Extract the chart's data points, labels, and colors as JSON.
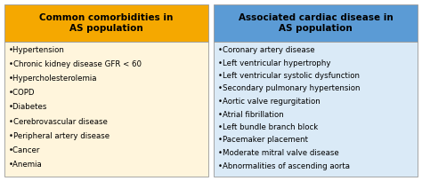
{
  "left_title": "Common comorbidities in\nAS population",
  "right_title": "Associated cardiac disease in\nAS population",
  "left_items": [
    "•Hypertension",
    "•Chronic kidney disease GFR < 60",
    "•Hypercholesterolemia",
    "•COPD",
    "•Diabetes",
    "•Cerebrovascular disease",
    "•Peripheral artery disease",
    "•Cancer",
    "•Anemia"
  ],
  "right_items": [
    "•Coronary artery disease",
    "•Left ventricular hypertrophy",
    "•Left ventricular systolic dysfunction",
    "•Secondary pulmonary hypertension",
    "•Aortic valve regurgitation",
    "•Atrial fibrillation",
    "•Left bundle branch block",
    "•Pacemaker placement",
    "•Moderate mitral valve disease",
    "•Abnormalities of ascending aorta"
  ],
  "left_header_bg": "#F5A800",
  "right_header_bg": "#5B9BD5",
  "left_body_bg": "#FFF5DC",
  "right_body_bg": "#DAEAF7",
  "header_text_color": "#000000",
  "body_text_color": "#000000",
  "border_color": "#999999",
  "title_fontsize": 7.5,
  "body_fontsize": 6.2,
  "fig_bg": "#ffffff"
}
